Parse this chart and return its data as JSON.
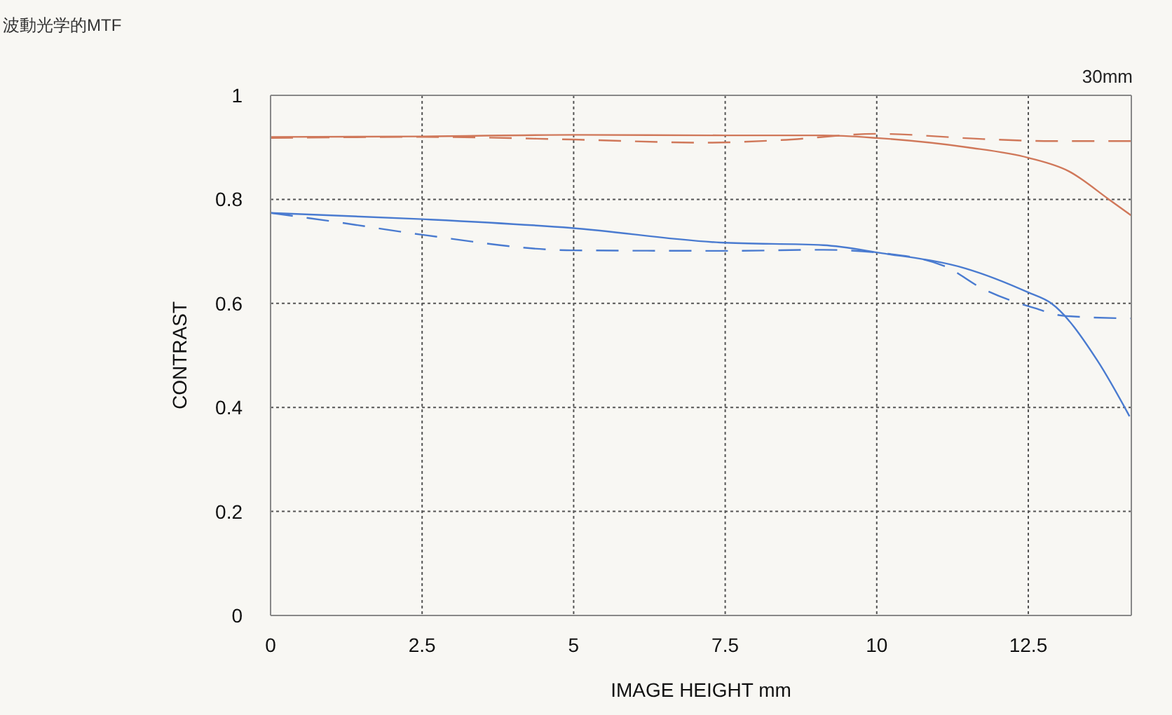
{
  "chart_data": {
    "type": "line",
    "title": "波動光学的MTF",
    "subtitle": "30mm",
    "xlabel": "IMAGE HEIGHT  mm",
    "ylabel": "CONTRAST",
    "xlim": [
      0,
      14.2
    ],
    "xticks": [
      0,
      2.5,
      5,
      7.5,
      10,
      12.5
    ],
    "ylim": [
      0,
      1
    ],
    "yticks": [
      0,
      0.2,
      0.4,
      0.6,
      0.8,
      1
    ],
    "grid": true,
    "marker": "none",
    "series": [
      {
        "color": "#d0785a",
        "line_style": "solid",
        "x": [
          0,
          2.5,
          5,
          7.5,
          9.1,
          10,
          11.5,
          12.5,
          13.17,
          13.83,
          14.2
        ],
        "values": [
          0.92,
          0.921,
          0.924,
          0.923,
          0.923,
          0.918,
          0.9,
          0.88,
          0.854,
          0.8,
          0.769
        ]
      },
      {
        "color": "#d0785a",
        "line_style": "dashed",
        "x": [
          0,
          2.5,
          5,
          7.15,
          8.43,
          10,
          11.75,
          12.9,
          14.2
        ],
        "values": [
          0.918,
          0.92,
          0.915,
          0.909,
          0.914,
          0.926,
          0.916,
          0.912,
          0.912
        ]
      },
      {
        "color": "#4a7bd0",
        "line_style": "solid",
        "x": [
          0,
          2.5,
          4.97,
          7.42,
          9.12,
          10.06,
          11.47,
          12.5,
          12.88,
          13.64,
          14.17
        ],
        "values": [
          0.774,
          0.762,
          0.745,
          0.717,
          0.712,
          0.697,
          0.667,
          0.621,
          0.6,
          0.49,
          0.383
        ]
      },
      {
        "color": "#4a7bd0",
        "line_style": "dashed",
        "x": [
          0,
          1,
          2.5,
          5,
          7.5,
          9.12,
          10.06,
          11.11,
          11.75,
          12.6,
          13.09,
          14.2
        ],
        "values": [
          0.774,
          0.758,
          0.732,
          0.702,
          0.701,
          0.703,
          0.697,
          0.672,
          0.628,
          0.591,
          0.576,
          0.571
        ]
      }
    ]
  }
}
